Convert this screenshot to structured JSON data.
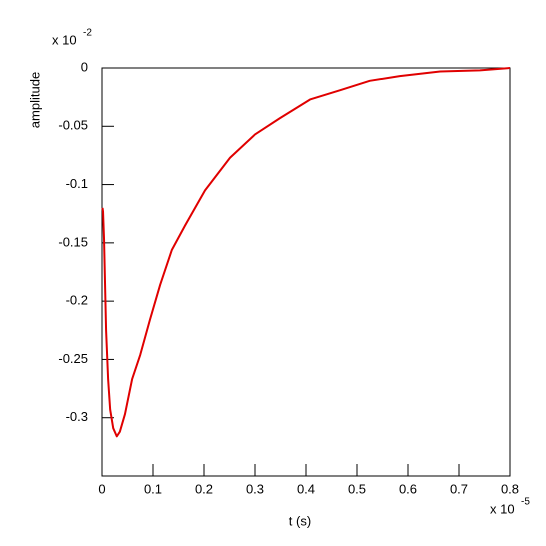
{
  "chart_data": {
    "type": "line",
    "x_label": "t (s)",
    "y_label": "amplitude",
    "x_multiplier": {
      "base": "x 10",
      "exponent": "-5"
    },
    "y_multiplier": {
      "base": "x 10",
      "exponent": "-2"
    },
    "xlim": [
      0,
      0.8
    ],
    "ylim": [
      -0.35,
      0
    ],
    "xticks": [
      0,
      0.1,
      0.2,
      0.3,
      0.4,
      0.5,
      0.6,
      0.7,
      0.8
    ],
    "yticks": [
      -0.3,
      -0.25,
      -0.2,
      -0.15,
      -0.1,
      -0.05,
      0
    ],
    "grid": false,
    "series": [
      {
        "color": "#e00000",
        "x": [
          0.001,
          0.002,
          0.004,
          0.008,
          0.012,
          0.016,
          0.022,
          0.029,
          0.035,
          0.045,
          0.059,
          0.075,
          0.094,
          0.114,
          0.137,
          0.163,
          0.202,
          0.251,
          0.3,
          0.349,
          0.408,
          0.467,
          0.525,
          0.584,
          0.663,
          0.741,
          0.8
        ],
        "values": [
          -0.12,
          -0.123,
          -0.147,
          -0.225,
          -0.267,
          -0.293,
          -0.309,
          -0.316,
          -0.312,
          -0.297,
          -0.267,
          -0.246,
          -0.216,
          -0.186,
          -0.156,
          -0.135,
          -0.105,
          -0.077,
          -0.057,
          -0.043,
          -0.027,
          -0.019,
          -0.011,
          -0.007,
          -0.003,
          -0.002,
          0
        ]
      }
    ]
  }
}
